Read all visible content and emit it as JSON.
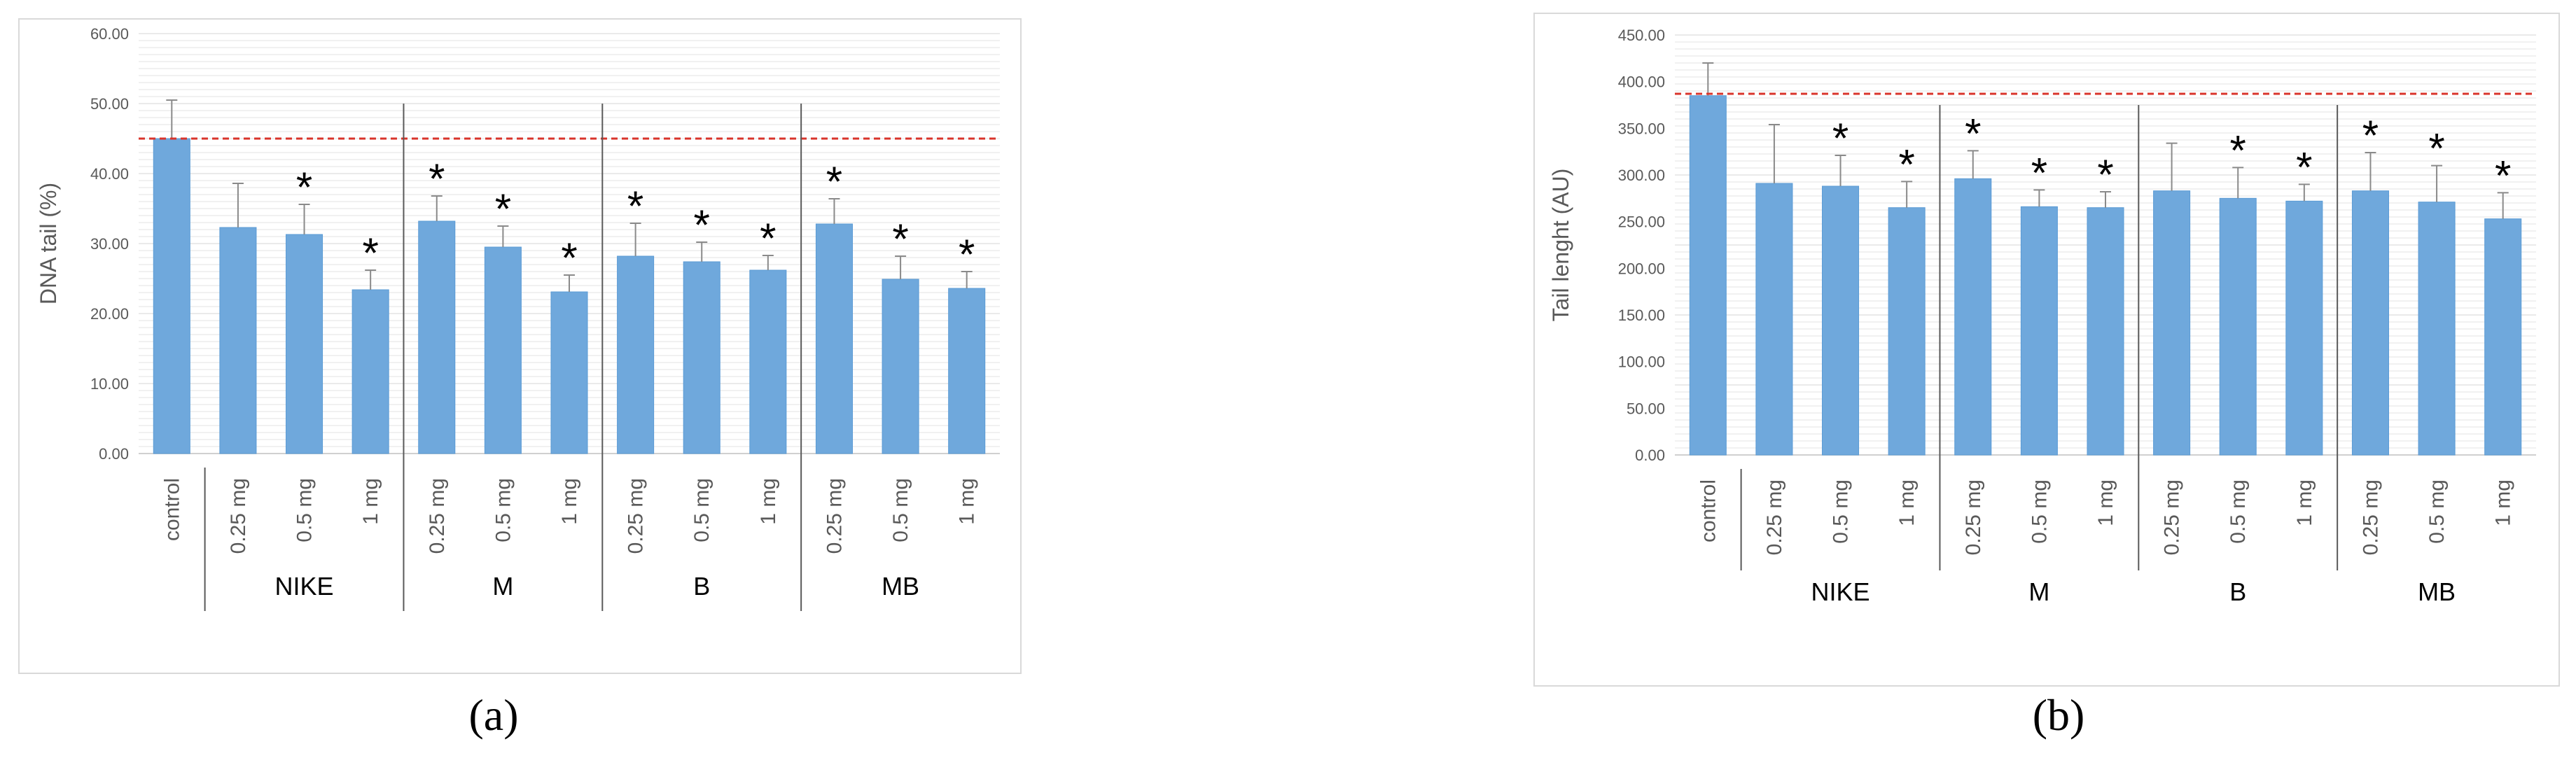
{
  "panels": [
    {
      "label": "(a)",
      "chart_data": {
        "type": "bar",
        "ylabel": "DNA tail (%)",
        "ylim": [
          0,
          60
        ],
        "yticks": [
          "0.00",
          "10.00",
          "20.00",
          "30.00",
          "40.00",
          "50.00",
          "60.00"
        ],
        "grid": true,
        "categories": [
          "control",
          "0.25 mg",
          "0.5 mg",
          "1 mg",
          "0.25 mg",
          "0.5 mg",
          "1 mg",
          "0.25 mg",
          "0.5 mg",
          "1 mg",
          "0.25 mg",
          "0.5 mg",
          "1 mg"
        ],
        "values": [
          45.0,
          32.3,
          31.3,
          23.4,
          33.2,
          29.5,
          23.1,
          28.2,
          27.4,
          26.2,
          32.8,
          24.9,
          23.6
        ],
        "errors": [
          5.5,
          6.3,
          4.3,
          2.8,
          3.6,
          3.0,
          2.4,
          4.7,
          2.8,
          2.1,
          3.6,
          3.3,
          2.4
        ],
        "significant": [
          false,
          false,
          true,
          true,
          true,
          true,
          true,
          true,
          true,
          true,
          true,
          true,
          true
        ],
        "significance_marker": "*",
        "groups": [
          {
            "name": "NIKE",
            "start": 1,
            "end": 3
          },
          {
            "name": "M",
            "start": 4,
            "end": 6
          },
          {
            "name": "B",
            "start": 7,
            "end": 9
          },
          {
            "name": "MB",
            "start": 10,
            "end": 12
          }
        ],
        "reference_line": 45.0,
        "colors": {
          "bar": "#6fa8dc",
          "bar_edge": "#5b9bd5",
          "reference": "#d9342b",
          "grid": "#e3e3e3",
          "axis_text": "#595959"
        }
      }
    },
    {
      "label": "(b)",
      "chart_data": {
        "type": "bar",
        "ylabel": "Tail lenght  (AU)",
        "ylim": [
          0,
          450
        ],
        "yticks": [
          "0.00",
          "50.00",
          "100.00",
          "150.00",
          "200.00",
          "250.00",
          "300.00",
          "350.00",
          "400.00",
          "450.00"
        ],
        "grid": true,
        "categories": [
          "control",
          "0.25 mg",
          "0.5 mg",
          "1 mg",
          "0.25 mg",
          "0.5 mg",
          "1 mg",
          "0.25 mg",
          "0.5 mg",
          "1 mg",
          "0.25 mg",
          "0.5 mg",
          "1 mg"
        ],
        "values": [
          385,
          291,
          288,
          265,
          296,
          266,
          265,
          283,
          275,
          272,
          283,
          271,
          253
        ],
        "errors": [
          35,
          63,
          33,
          28,
          30,
          18,
          17,
          51,
          33,
          18,
          41,
          39,
          28
        ],
        "significant": [
          false,
          false,
          true,
          true,
          true,
          true,
          true,
          false,
          true,
          true,
          true,
          true,
          true
        ],
        "significance_marker": "*",
        "groups": [
          {
            "name": "NIKE",
            "start": 1,
            "end": 3
          },
          {
            "name": "M",
            "start": 4,
            "end": 6
          },
          {
            "name": "B",
            "start": 7,
            "end": 9
          },
          {
            "name": "MB",
            "start": 10,
            "end": 12
          }
        ],
        "reference_line": 387,
        "colors": {
          "bar": "#6fa8dc",
          "bar_edge": "#5b9bd5",
          "reference": "#d9342b",
          "grid": "#e3e3e3",
          "axis_text": "#595959"
        }
      }
    }
  ]
}
